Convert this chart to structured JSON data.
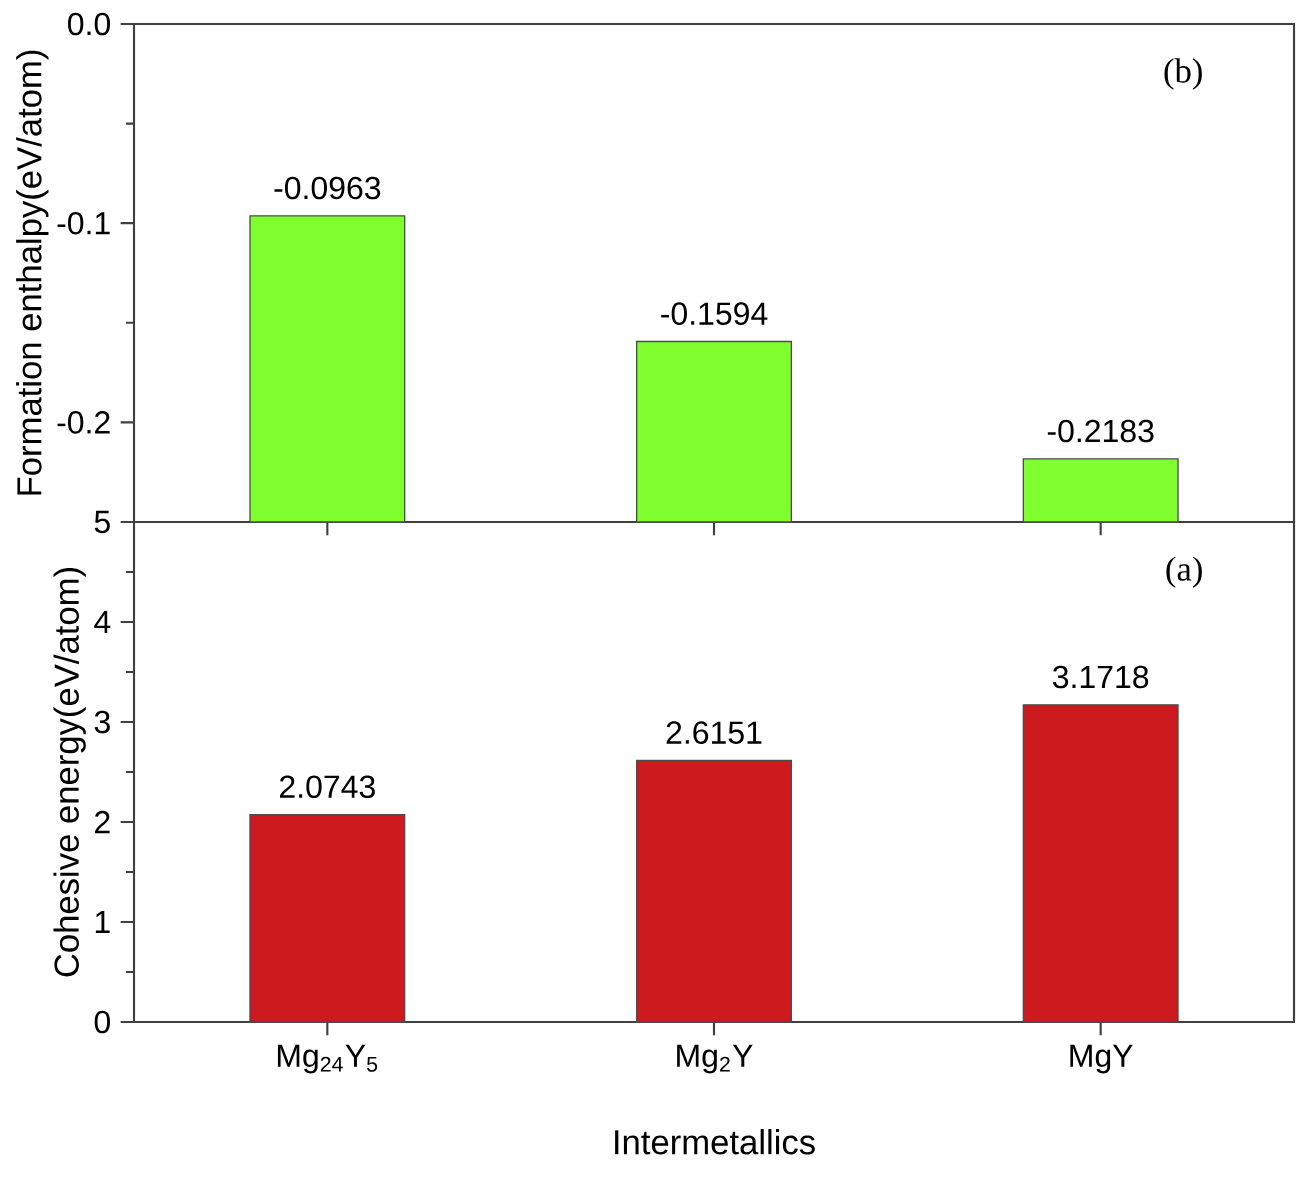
{
  "chart_data": [
    {
      "type": "bar",
      "categories": [
        null,
        null,
        null
      ],
      "ylabel": "Formation enthalpy(eV/atom)",
      "values": [
        0.1537,
        0.0906,
        0.0317
      ],
      "base": [
        -0.25,
        -0.25,
        -0.25
      ],
      "value_labels": [
        "-0.0963",
        "-0.1594",
        "-0.2183"
      ],
      "color": "#80ff2e",
      "ylim": [
        -0.25,
        0
      ],
      "yticks": [
        {
          "value": 0,
          "label": "0.0"
        },
        -0.1,
        -0.2
      ],
      "annotations": [
        "(b)"
      ],
      "tick_labels": "y"
    },
    {
      "type": "bar",
      "categories": [
        "Mg$_{24}$Y$_{5}$",
        "Mg$_{2}$Y",
        "MgY"
      ],
      "ylabel": "Cohesive energy(eV/atom)",
      "xlabel": "Intermetallics",
      "values": [
        2.0743,
        2.6151,
        3.1718
      ],
      "color": "#cc1a1f",
      "data_labels": true,
      "ylim": [
        0,
        5
      ],
      "yticks": [
        0,
        1,
        2,
        3,
        4,
        5
      ],
      "annotations": [
        "(a)"
      ]
    }
  ]
}
